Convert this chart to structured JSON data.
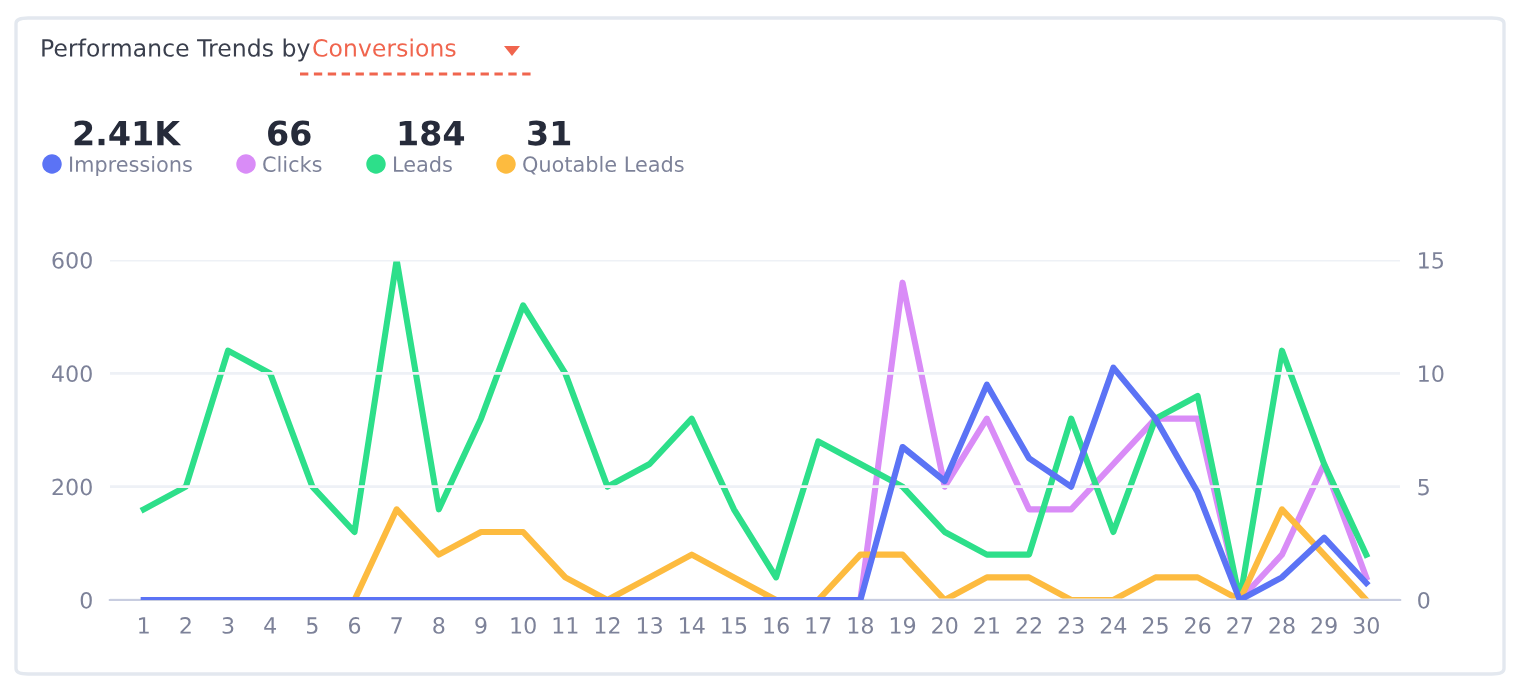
{
  "chart_data": {
    "type": "line",
    "title": "Performance Trends by",
    "subtitle": "Conversions",
    "annotations": [
      "2.41K",
      "66",
      "184",
      "31"
    ],
    "categories": [
      "1",
      "2",
      "3",
      "4",
      "5",
      "6",
      "7",
      "8",
      "9",
      "10",
      "11",
      "12",
      "13",
      "14",
      "15",
      "16",
      "17",
      "18",
      "19",
      "20",
      "21",
      "22",
      "23",
      "24",
      "25",
      "26",
      "27",
      "28",
      "29",
      "30"
    ],
    "series": [
      {
        "name": "Impressions",
        "color": "#5b73f5",
        "values": [
          0,
          0,
          0,
          0,
          0,
          0,
          0,
          0,
          0,
          0,
          0,
          0,
          0,
          0,
          0,
          0,
          0,
          0,
          270,
          210,
          380,
          250,
          200,
          410,
          320,
          190,
          0,
          40,
          110,
          30
        ]
      },
      {
        "name": "Clicks",
        "color": "#d98cf7",
        "axis": "y2",
        "values": [
          null,
          null,
          null,
          null,
          null,
          null,
          null,
          null,
          null,
          null,
          null,
          null,
          null,
          null,
          null,
          null,
          null,
          0,
          14,
          5,
          8,
          4,
          4,
          6,
          8,
          8,
          0,
          2,
          6,
          1
        ]
      },
      {
        "name": "Leads",
        "color": "#2ddf8a",
        "axis": "y2",
        "values": [
          4,
          5,
          11,
          10,
          5,
          3,
          15,
          4,
          8,
          13,
          10,
          5,
          6,
          8,
          4,
          1,
          7,
          6,
          5,
          3,
          2,
          2,
          8,
          3,
          8,
          9,
          0,
          11,
          6,
          2
        ]
      },
      {
        "name": "Quotable Leads",
        "color": "#fdbb3f",
        "axis": "y2",
        "values": [
          null,
          null,
          null,
          null,
          null,
          0,
          4,
          2,
          3,
          3,
          1,
          0,
          1,
          2,
          1,
          0,
          0,
          2,
          2,
          0,
          1,
          1,
          0,
          0,
          1,
          1,
          0,
          4,
          2,
          0
        ]
      }
    ],
    "ylim": [
      0,
      600
    ],
    "yticks": [
      0,
      200,
      400,
      600
    ],
    "y2lim": [
      0,
      15
    ],
    "y2ticks": [
      0,
      5,
      10,
      15
    ],
    "grid": "y",
    "legend": "top left",
    "marker": "none",
    "line_style": "solid"
  }
}
